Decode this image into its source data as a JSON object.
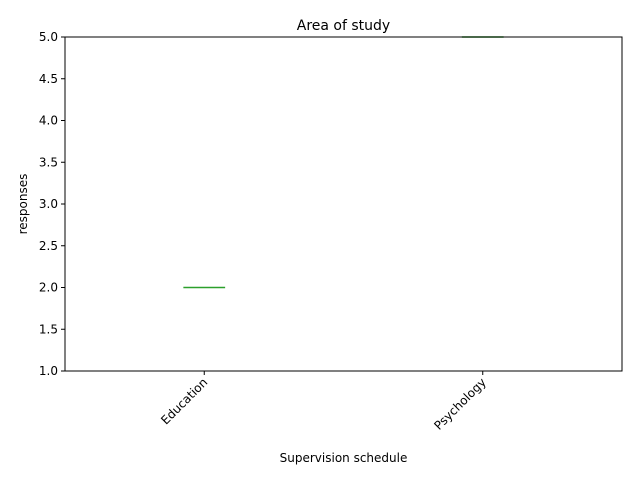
{
  "chart_data": {
    "type": "box",
    "title": "Area of study",
    "xlabel": "Supervision schedule",
    "ylabel": "responses",
    "categories": [
      "Education",
      "Psychology"
    ],
    "medians": [
      2.0,
      5.0
    ],
    "ylim": [
      1.0,
      5.0
    ],
    "yticks": [
      "1.0",
      "1.5",
      "2.0",
      "2.5",
      "3.0",
      "3.5",
      "4.0",
      "4.5",
      "5.0"
    ],
    "grid": false,
    "legend": "none",
    "median_color": "#2ca02c"
  }
}
